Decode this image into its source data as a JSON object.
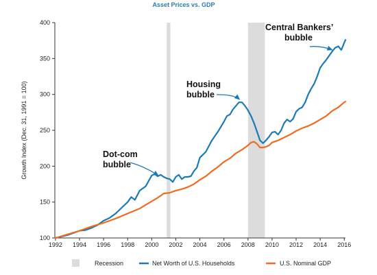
{
  "chart_data": {
    "type": "line",
    "title": "Asset Prices vs. GDP",
    "ylabel": "Growth Index (Dec. 31, 1991 = 100)",
    "xlabel": "",
    "xlim": [
      1991.95,
      2016.1
    ],
    "ylim": [
      100,
      400
    ],
    "x_ticks": [
      "1992",
      "1994",
      "1996",
      "1998",
      "2000",
      "2002",
      "2004",
      "2006",
      "2008",
      "2010",
      "2012",
      "2014",
      "2016"
    ],
    "y_ticks": [
      "100",
      "150",
      "200",
      "250",
      "300",
      "350",
      "400"
    ],
    "grid": false,
    "legend_placement": "bottom",
    "recessions": [
      {
        "start": 2001.25,
        "end": 2001.55
      },
      {
        "start": 2008.0,
        "end": 2009.4
      }
    ],
    "series": [
      {
        "name": "Net Worth of U.S. Households",
        "color": "#1a7ab6",
        "points": [
          [
            1992.0,
            100
          ],
          [
            1992.5,
            102
          ],
          [
            1993.0,
            104
          ],
          [
            1993.5,
            107
          ],
          [
            1994.0,
            110
          ],
          [
            1994.5,
            111
          ],
          [
            1995.0,
            114
          ],
          [
            1995.5,
            118
          ],
          [
            1996.0,
            124
          ],
          [
            1996.5,
            128
          ],
          [
            1997.0,
            134
          ],
          [
            1997.5,
            142
          ],
          [
            1998.0,
            150
          ],
          [
            1998.3,
            157
          ],
          [
            1998.6,
            153
          ],
          [
            1999.0,
            166
          ],
          [
            1999.5,
            172
          ],
          [
            2000.0,
            187
          ],
          [
            2000.25,
            189
          ],
          [
            2000.5,
            186
          ],
          [
            2000.75,
            188
          ],
          [
            2001.0,
            185
          ],
          [
            2001.25,
            183
          ],
          [
            2001.5,
            182
          ],
          [
            2001.75,
            178
          ],
          [
            2002.0,
            185
          ],
          [
            2002.25,
            188
          ],
          [
            2002.5,
            182
          ],
          [
            2002.75,
            185
          ],
          [
            2003.0,
            185
          ],
          [
            2003.25,
            186
          ],
          [
            2003.5,
            193
          ],
          [
            2003.75,
            198
          ],
          [
            2004.0,
            212
          ],
          [
            2004.25,
            216
          ],
          [
            2004.5,
            220
          ],
          [
            2004.75,
            228
          ],
          [
            2005.0,
            236
          ],
          [
            2005.25,
            242
          ],
          [
            2005.5,
            248
          ],
          [
            2005.75,
            255
          ],
          [
            2006.0,
            262
          ],
          [
            2006.25,
            270
          ],
          [
            2006.5,
            272
          ],
          [
            2006.75,
            279
          ],
          [
            2007.0,
            284
          ],
          [
            2007.25,
            289
          ],
          [
            2007.5,
            289
          ],
          [
            2007.75,
            284
          ],
          [
            2008.0,
            278
          ],
          [
            2008.25,
            270
          ],
          [
            2008.5,
            260
          ],
          [
            2008.75,
            248
          ],
          [
            2009.0,
            236
          ],
          [
            2009.25,
            232
          ],
          [
            2009.5,
            236
          ],
          [
            2009.75,
            241
          ],
          [
            2010.0,
            247
          ],
          [
            2010.25,
            248
          ],
          [
            2010.5,
            244
          ],
          [
            2010.75,
            250
          ],
          [
            2011.0,
            260
          ],
          [
            2011.25,
            265
          ],
          [
            2011.5,
            262
          ],
          [
            2011.75,
            266
          ],
          [
            2012.0,
            276
          ],
          [
            2012.25,
            280
          ],
          [
            2012.5,
            282
          ],
          [
            2012.75,
            289
          ],
          [
            2013.0,
            300
          ],
          [
            2013.25,
            308
          ],
          [
            2013.5,
            315
          ],
          [
            2013.75,
            325
          ],
          [
            2014.0,
            337
          ],
          [
            2014.25,
            343
          ],
          [
            2014.5,
            348
          ],
          [
            2014.75,
            354
          ],
          [
            2015.0,
            360
          ],
          [
            2015.25,
            365
          ],
          [
            2015.5,
            367
          ],
          [
            2015.75,
            362
          ],
          [
            2016.0,
            372
          ],
          [
            2016.1,
            376
          ]
        ]
      },
      {
        "name": "U.S. Nominal GDP",
        "color": "#f26a21",
        "points": [
          [
            1992.0,
            100
          ],
          [
            1993.0,
            105
          ],
          [
            1994.0,
            110
          ],
          [
            1995.0,
            116
          ],
          [
            1996.0,
            121
          ],
          [
            1997.0,
            127
          ],
          [
            1998.0,
            134
          ],
          [
            1999.0,
            141
          ],
          [
            2000.0,
            151
          ],
          [
            2000.5,
            156
          ],
          [
            2001.0,
            162
          ],
          [
            2001.5,
            163
          ],
          [
            2002.0,
            166
          ],
          [
            2002.5,
            168
          ],
          [
            2003.0,
            171
          ],
          [
            2003.5,
            175
          ],
          [
            2004.0,
            181
          ],
          [
            2004.5,
            186
          ],
          [
            2005.0,
            193
          ],
          [
            2005.5,
            199
          ],
          [
            2006.0,
            206
          ],
          [
            2006.5,
            211
          ],
          [
            2007.0,
            218
          ],
          [
            2007.5,
            223
          ],
          [
            2008.0,
            229
          ],
          [
            2008.25,
            233
          ],
          [
            2008.5,
            234
          ],
          [
            2008.75,
            231
          ],
          [
            2009.0,
            226
          ],
          [
            2009.25,
            226
          ],
          [
            2009.5,
            227
          ],
          [
            2009.75,
            229
          ],
          [
            2010.0,
            233
          ],
          [
            2010.5,
            236
          ],
          [
            2011.0,
            240
          ],
          [
            2011.5,
            244
          ],
          [
            2012.0,
            249
          ],
          [
            2012.5,
            253
          ],
          [
            2013.0,
            256
          ],
          [
            2013.5,
            260
          ],
          [
            2014.0,
            265
          ],
          [
            2014.5,
            270
          ],
          [
            2015.0,
            277
          ],
          [
            2015.5,
            282
          ],
          [
            2016.0,
            289
          ],
          [
            2016.1,
            290
          ]
        ]
      }
    ],
    "annotations": [
      {
        "lines": [
          "Dot-com",
          "bubble"
        ],
        "target": [
          2000.55,
          187
        ]
      },
      {
        "lines": [
          "Housing",
          "bubble"
        ],
        "target": [
          2007.3,
          293
        ]
      },
      {
        "lines": [
          "Central Bankers’",
          "bubble"
        ],
        "target": [
          2015.0,
          362
        ]
      }
    ],
    "legend": {
      "recession_label": "Recession",
      "entries": [
        "Net Worth of U.S. Households",
        "U.S. Nominal GDP"
      ]
    }
  }
}
